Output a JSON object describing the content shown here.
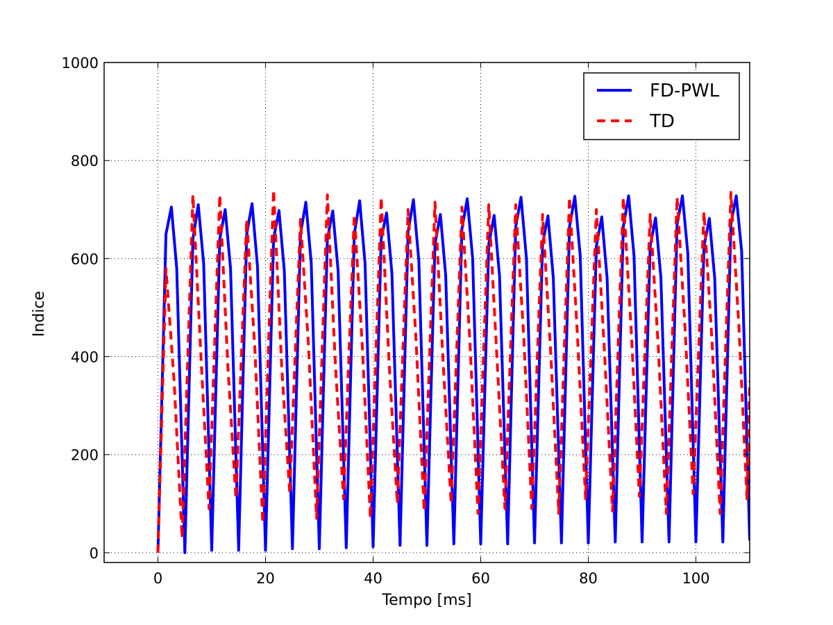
{
  "chart_data": {
    "type": "line",
    "xlabel": "Tempo [ms]",
    "ylabel": "Indice",
    "xlim": [
      -10,
      110
    ],
    "ylim": [
      -20,
      1000
    ],
    "xticks": [
      0,
      20,
      40,
      60,
      80,
      100
    ],
    "yticks": [
      0,
      200,
      400,
      600,
      800,
      1000
    ],
    "grid": true,
    "legend_position": "top-right",
    "series": [
      {
        "name": "FD-PWL",
        "color": "#0000ff",
        "style": "solid",
        "x": [
          0,
          1.5,
          2.5,
          3.5,
          5,
          6.5,
          7.5,
          8.5,
          10,
          11.5,
          12.5,
          13.5,
          15,
          16.5,
          17.5,
          18.5,
          20,
          21.5,
          22.5,
          23.5,
          25,
          26.5,
          27.5,
          28.5,
          30,
          31.5,
          32.5,
          33.5,
          35,
          36.5,
          37.5,
          38.5,
          40,
          41.5,
          42.5,
          43.5,
          45,
          46.5,
          47.5,
          48.5,
          50,
          51.5,
          52.5,
          53.5,
          55,
          56.5,
          57.5,
          58.5,
          60,
          61.5,
          62.5,
          63.5,
          65,
          66.5,
          67.5,
          68.5,
          70,
          71.5,
          72.5,
          73.5,
          75,
          76.5,
          77.5,
          78.5,
          80,
          81.5,
          82.5,
          83.5,
          85,
          86.5,
          87.5,
          88.5,
          90,
          91.5,
          92.5,
          93.5,
          95,
          96.5,
          97.5,
          98.5,
          100,
          101.5,
          102.5,
          103.5,
          105,
          106.5,
          107.5,
          108.5,
          110
        ],
        "y": [
          0,
          650,
          705,
          580,
          0,
          640,
          710,
          590,
          5,
          640,
          700,
          580,
          5,
          650,
          712,
          585,
          5,
          640,
          698,
          575,
          8,
          650,
          715,
          590,
          8,
          640,
          697,
          575,
          10,
          650,
          718,
          590,
          12,
          640,
          693,
          570,
          15,
          655,
          720,
          595,
          15,
          630,
          690,
          565,
          18,
          660,
          722,
          600,
          18,
          630,
          688,
          565,
          18,
          665,
          725,
          600,
          20,
          630,
          687,
          560,
          20,
          665,
          727,
          605,
          20,
          625,
          685,
          560,
          22,
          665,
          728,
          605,
          22,
          625,
          683,
          560,
          22,
          670,
          728,
          610,
          22,
          625,
          682,
          560,
          22,
          670,
          728,
          615,
          25
        ]
      },
      {
        "name": "TD",
        "color": "#ff0000",
        "style": "dashed",
        "x": [
          0,
          1.5,
          3,
          4.5,
          6.5,
          8,
          9.5,
          11.5,
          13,
          14.5,
          16.5,
          18,
          19.5,
          21.5,
          23,
          24.5,
          26.5,
          28,
          29.5,
          31.5,
          33,
          34.5,
          36.5,
          38,
          39.5,
          41.5,
          43,
          44.5,
          46.5,
          48,
          49.5,
          51.5,
          53,
          54.5,
          56.5,
          58,
          59.5,
          61.5,
          63,
          64.5,
          66.5,
          68,
          69.5,
          71.5,
          73,
          74.5,
          76.5,
          78,
          79.5,
          81.5,
          83,
          84.5,
          86.5,
          88,
          89.5,
          91.5,
          93,
          94.5,
          96.5,
          98,
          99.5,
          101.5,
          103,
          104.5,
          106.5,
          108,
          109.5,
          110
        ],
        "y": [
          0,
          580,
          350,
          30,
          730,
          400,
          90,
          730,
          380,
          110,
          680,
          420,
          60,
          740,
          380,
          120,
          680,
          420,
          70,
          730,
          380,
          110,
          690,
          420,
          70,
          725,
          380,
          100,
          700,
          430,
          85,
          715,
          390,
          100,
          705,
          430,
          80,
          710,
          400,
          90,
          710,
          440,
          90,
          690,
          410,
          80,
          725,
          440,
          110,
          700,
          410,
          85,
          725,
          450,
          115,
          690,
          420,
          80,
          725,
          455,
          120,
          695,
          430,
          80,
          735,
          460,
          110,
          350
        ]
      }
    ]
  }
}
